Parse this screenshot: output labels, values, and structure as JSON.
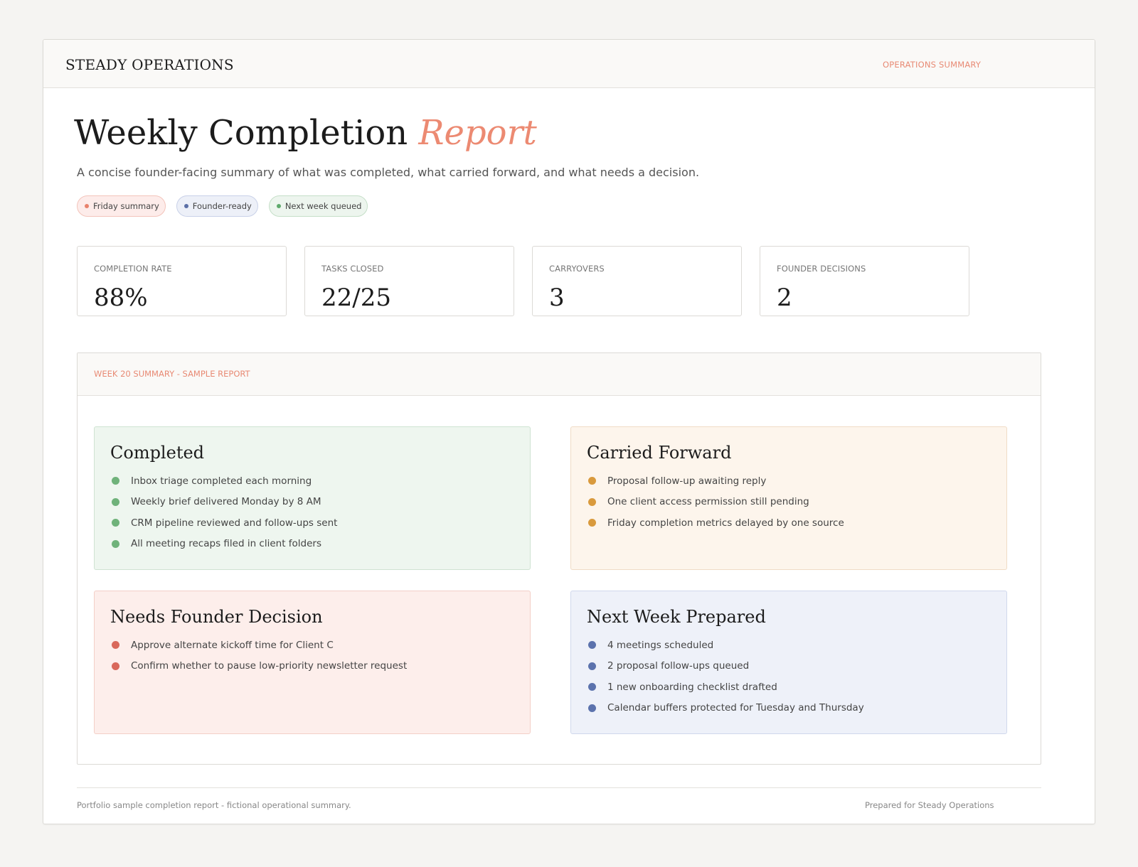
{
  "header": {
    "brand": "STEADY OPERATIONS",
    "label": "OPERATIONS SUMMARY"
  },
  "hero": {
    "title_main": "Weekly Completion",
    "title_accent": "Report",
    "subtitle": "A concise founder-facing summary of what was completed, what carried forward, and what needs a decision."
  },
  "chips": [
    {
      "label": "Friday summary",
      "color": "#e8826c"
    },
    {
      "label": "Founder-ready",
      "color": "#5b6fa6"
    },
    {
      "label": "Next week queued",
      "color": "#5faa6c"
    }
  ],
  "stats": [
    {
      "label": "COMPLETION RATE",
      "value": "88%"
    },
    {
      "label": "TASKS CLOSED",
      "value": "22/25"
    },
    {
      "label": "CARRYOVERS",
      "value": "3"
    },
    {
      "label": "FOUNDER DECISIONS",
      "value": "2"
    }
  ],
  "report": {
    "heading": "WEEK 20 SUMMARY - SAMPLE REPORT",
    "panels": [
      {
        "title": "Completed",
        "color": "#6fb27a",
        "items": [
          "Inbox triage completed each morning",
          "Weekly brief delivered Monday by 8 AM",
          "CRM pipeline reviewed and follow-ups sent",
          "All meeting recaps filed in client folders"
        ]
      },
      {
        "title": "Carried Forward",
        "color": "#d99a3d",
        "items": [
          "Proposal follow-up awaiting reply",
          "One client access permission still pending",
          "Friday completion metrics delayed by one source"
        ]
      },
      {
        "title": "Needs Founder Decision",
        "color": "#d9685b",
        "items": [
          "Approve alternate kickoff time for Client C",
          "Confirm whether to pause low-priority newsletter request"
        ]
      },
      {
        "title": "Next Week Prepared",
        "color": "#5b72ad",
        "items": [
          "4 meetings scheduled",
          "2 proposal follow-ups queued",
          "1 new onboarding checklist drafted",
          "Calendar buffers protected for Tuesday and Thursday"
        ]
      }
    ]
  },
  "footer": {
    "left": "Portfolio sample completion report - fictional operational summary.",
    "right": "Prepared for Steady Operations"
  }
}
